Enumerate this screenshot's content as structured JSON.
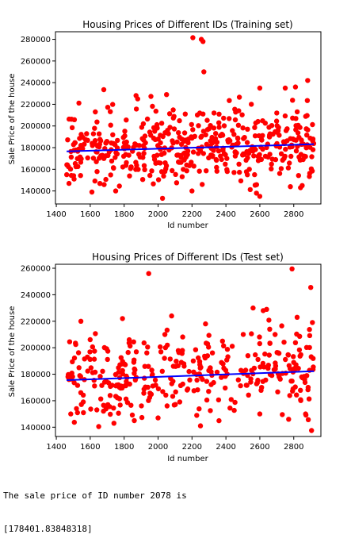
{
  "chart_data": [
    {
      "type": "scatter",
      "title": "Housing Prices of Different IDs (Training set)",
      "xlabel": "Id number",
      "ylabel": "Sale Price of the house",
      "xlim": [
        1395,
        2960
      ],
      "ylim": [
        128000,
        287000
      ],
      "xticks": [
        1400,
        1600,
        1800,
        2000,
        2200,
        2400,
        2600,
        2800
      ],
      "yticks": [
        140000,
        160000,
        180000,
        200000,
        220000,
        240000,
        260000,
        280000
      ],
      "point_color": "#ff0000",
      "line_color": "#0000ff",
      "regression": {
        "x": [
          1461,
          2919
        ],
        "y": [
          176500,
          183200
        ]
      },
      "outliers": [
        [
          2205,
          281500
        ],
        [
          2255,
          280000
        ],
        [
          2265,
          278000
        ],
        [
          2270,
          250000
        ],
        [
          1680,
          233500
        ],
        [
          1870,
          228000
        ],
        [
          1880,
          225000
        ],
        [
          2050,
          229000
        ],
        [
          2420,
          223500
        ],
        [
          2550,
          220000
        ],
        [
          2600,
          235000
        ],
        [
          2750,
          235000
        ],
        [
          2810,
          236000
        ],
        [
          2880,
          223500
        ],
        [
          1630,
          213000
        ],
        [
          1475,
          147000
        ],
        [
          1505,
          151000
        ],
        [
          1610,
          139000
        ],
        [
          1750,
          140000
        ],
        [
          2200,
          140000
        ],
        [
          2260,
          146000
        ],
        [
          2580,
          138000
        ],
        [
          2600,
          135000
        ],
        [
          2780,
          144000
        ],
        [
          2840,
          143000
        ],
        [
          2330,
          212000
        ],
        [
          2160,
          211000
        ],
        [
          2700,
          212000
        ]
      ],
      "cloud": {
        "x_start": 1461,
        "x_end": 2919,
        "count": 460,
        "center_start": 177000,
        "center_end": 184000,
        "spread": 15500,
        "seed": 7
      }
    },
    {
      "type": "scatter",
      "title": "Housing Prices of Different IDs (Test set)",
      "xlabel": "Id number",
      "ylabel": "Sale Price of the house",
      "xlim": [
        1395,
        2960
      ],
      "ylim": [
        133000,
        263000
      ],
      "xticks": [
        1400,
        1600,
        1800,
        2000,
        2200,
        2400,
        2600,
        2800
      ],
      "yticks": [
        140000,
        160000,
        180000,
        200000,
        220000,
        240000,
        260000
      ],
      "point_color": "#ff0000",
      "line_color": "#0000ff",
      "regression": {
        "x": [
          1461,
          2919
        ],
        "y": [
          175500,
          182300
        ]
      },
      "outliers": [
        [
          1945,
          256000
        ],
        [
          2790,
          259500
        ],
        [
          2900,
          245500
        ],
        [
          1545,
          220000
        ],
        [
          1790,
          222000
        ],
        [
          2080,
          224000
        ],
        [
          2280,
          218000
        ],
        [
          2560,
          230000
        ],
        [
          2620,
          228000
        ],
        [
          2640,
          229000
        ],
        [
          2820,
          223000
        ],
        [
          2910,
          219000
        ],
        [
          1525,
          151000
        ],
        [
          1560,
          151000
        ],
        [
          1650,
          140500
        ],
        [
          1740,
          143000
        ],
        [
          1860,
          145000
        ],
        [
          2000,
          147000
        ],
        [
          2250,
          141000
        ],
        [
          2600,
          150000
        ],
        [
          2770,
          146000
        ],
        [
          2870,
          150000
        ],
        [
          2905,
          137500
        ],
        [
          1830,
          206000
        ],
        [
          2380,
          205000
        ],
        [
          1485,
          150000
        ],
        [
          2690,
          210000
        ],
        [
          2040,
          210000
        ]
      ],
      "cloud": {
        "x_start": 1461,
        "x_end": 2919,
        "count": 330,
        "center_start": 176500,
        "center_end": 182800,
        "spread": 15500,
        "seed": 13
      }
    }
  ],
  "output": {
    "line1": "The sale price of ID number 2078 is",
    "line2": "[178401.83848318]"
  }
}
